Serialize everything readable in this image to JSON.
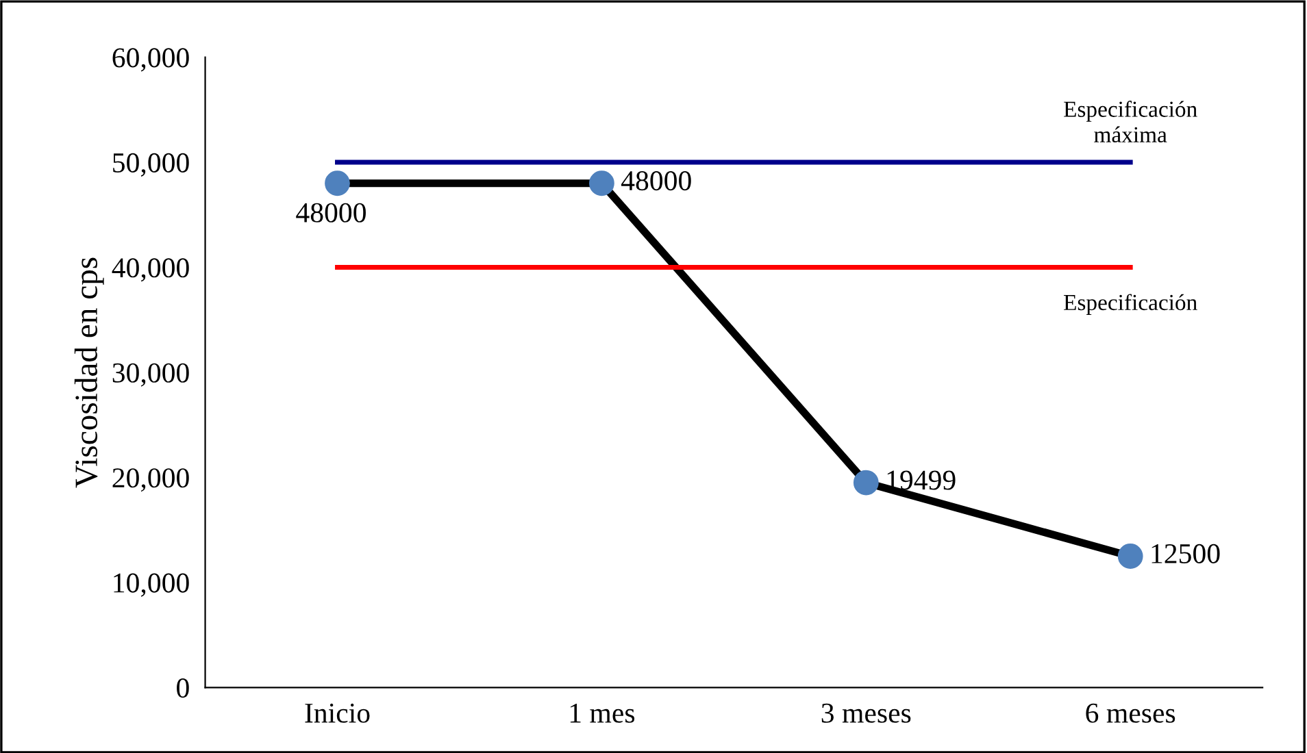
{
  "chart_data": {
    "type": "line",
    "ylabel": "Viscosidad en cps",
    "categories": [
      "Inicio",
      "1 mes",
      "3 meses",
      "6 meses"
    ],
    "series": [
      {
        "color": "#000000",
        "colors": [
          "#4f81bd",
          "#4f81bd",
          "#4f81bd",
          "#4f81bd"
        ],
        "marker": "circle",
        "values": [
          48000,
          48000,
          19499,
          12500
        ],
        "value_labels": [
          "48000",
          "48000",
          "19499",
          "12500"
        ]
      },
      {
        "name": "Especificación máxima",
        "color": "#00008b",
        "marker": "none",
        "values": [
          50000,
          50000,
          50000,
          50000
        ]
      },
      {
        "name": "Especificación",
        "color": "#ff0000",
        "marker": "none",
        "values": [
          40000,
          40000,
          40000,
          40000
        ]
      }
    ],
    "ylim": [
      0,
      60000
    ],
    "yticks": [
      {
        "value": 0,
        "label": "0"
      },
      {
        "value": 10000,
        "label": "10,000"
      },
      {
        "value": 20000,
        "label": "20,000"
      },
      {
        "value": 30000,
        "label": "30,000"
      },
      {
        "value": 40000,
        "label": "40,000"
      },
      {
        "value": 50000,
        "label": "50,000"
      },
      {
        "value": 60000,
        "label": "60,000"
      }
    ],
    "grid": false
  }
}
